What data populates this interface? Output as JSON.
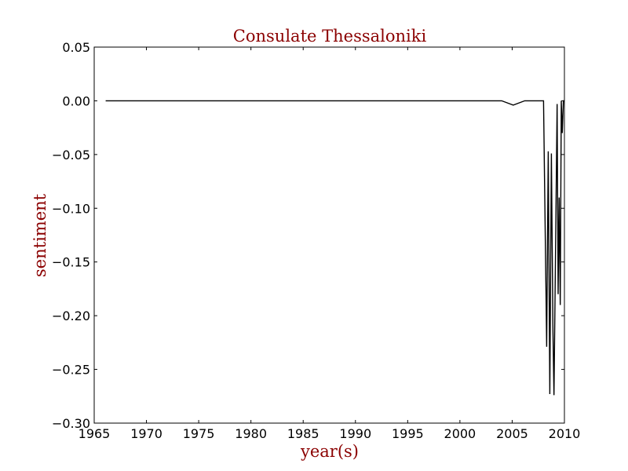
{
  "chart_data": {
    "type": "line",
    "title": "Consulate Thessaloniki",
    "xlabel": "year(s)",
    "ylabel": "sentiment",
    "xlim": [
      1965,
      2010
    ],
    "ylim": [
      -0.3,
      0.05
    ],
    "xticks": [
      "1965",
      "1970",
      "1975",
      "1980",
      "1985",
      "1990",
      "1995",
      "2000",
      "2005",
      "2010"
    ],
    "yticks": [
      "0.05",
      "0.00",
      "−0.05",
      "−0.10",
      "−0.15",
      "−0.20",
      "−0.25",
      "−0.30"
    ],
    "grid": false,
    "legend": "none",
    "line_color": "#000000",
    "text_color": "#8b0000",
    "series": [
      {
        "x": [
          1966.1,
          1970,
          1980,
          1990,
          2000,
          2004.0,
          2005.1,
          2006.2,
          2007.0,
          2008.0,
          2008.3,
          2008.45,
          2008.6,
          2008.75,
          2008.9,
          2009.0,
          2009.15,
          2009.3,
          2009.4,
          2009.5,
          2009.6,
          2009.7,
          2009.8,
          2009.9,
          2010.0
        ],
        "y": [
          0.0,
          0.0,
          0.0,
          0.0,
          0.0,
          0.0,
          -0.004,
          0.0,
          0.0,
          0.0,
          -0.229,
          -0.047,
          -0.273,
          -0.049,
          -0.215,
          -0.274,
          -0.14,
          -0.003,
          -0.18,
          -0.09,
          -0.19,
          -0.0,
          -0.03,
          0.0,
          0.0
        ]
      }
    ]
  }
}
